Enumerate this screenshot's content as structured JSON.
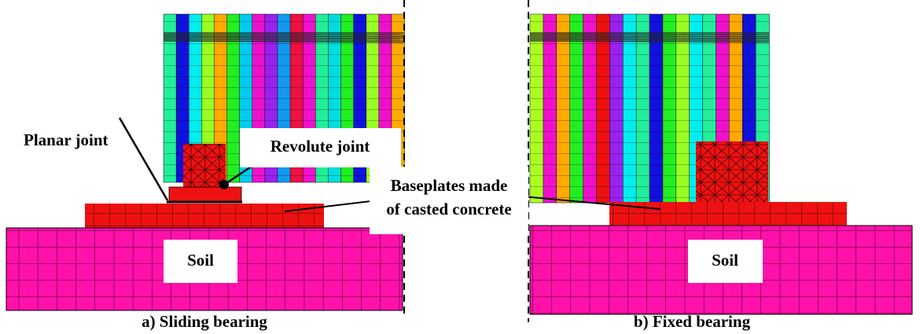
{
  "panel_a": {
    "caption": "a) Sliding bearing",
    "planar_joint": "Planar joint",
    "revolute_joint": "Revolute joint",
    "soil": "Soil"
  },
  "panel_b": {
    "caption": "b) Fixed bearing",
    "soil": "Soil"
  },
  "shared": {
    "baseplates": [
      "Baseplates made",
      "of casted concrete"
    ]
  }
}
